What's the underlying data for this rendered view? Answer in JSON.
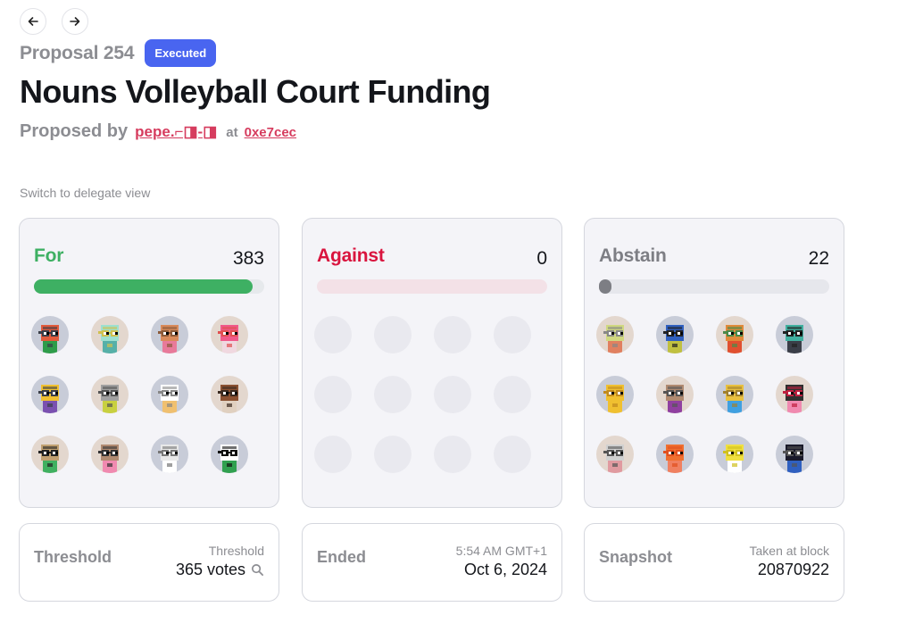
{
  "nav": {
    "back_icon": "arrow-left-icon",
    "forward_icon": "arrow-right-icon"
  },
  "proposal": {
    "number": "Proposal 254",
    "status": "Executed",
    "status_color": "#4965f0",
    "title": "Nouns Volleyball Court Funding",
    "proposed_by_label": "Proposed by",
    "proposer": "pepe.⌐◨-◨",
    "at_label": "at",
    "tx": "0xe7cec"
  },
  "switch_view": "Switch to delegate view",
  "votes": {
    "for": {
      "label": "For",
      "count": "383",
      "fraction": 0.95,
      "color": "#3eb063",
      "track": "#e6e9ec",
      "avatar_count": 12
    },
    "against": {
      "label": "Against",
      "count": "0",
      "fraction": 0,
      "color": "#d9143e",
      "track": "#f3e1e7",
      "avatar_count": 0
    },
    "abstain": {
      "label": "Abstain",
      "count": "22",
      "fraction": 0.05,
      "color": "#7d7e84",
      "track": "#e6e7ec",
      "avatar_count": 12
    }
  },
  "threshold": {
    "label": "Threshold",
    "sub": "Threshold",
    "value": "365 votes",
    "icon": "search-icon"
  },
  "ended": {
    "label": "Ended",
    "sub": "5:54 AM GMT+1",
    "value": "Oct 6, 2024"
  },
  "snapshot": {
    "label": "Snapshot",
    "sub": "Taken at block",
    "value": "20870922"
  }
}
